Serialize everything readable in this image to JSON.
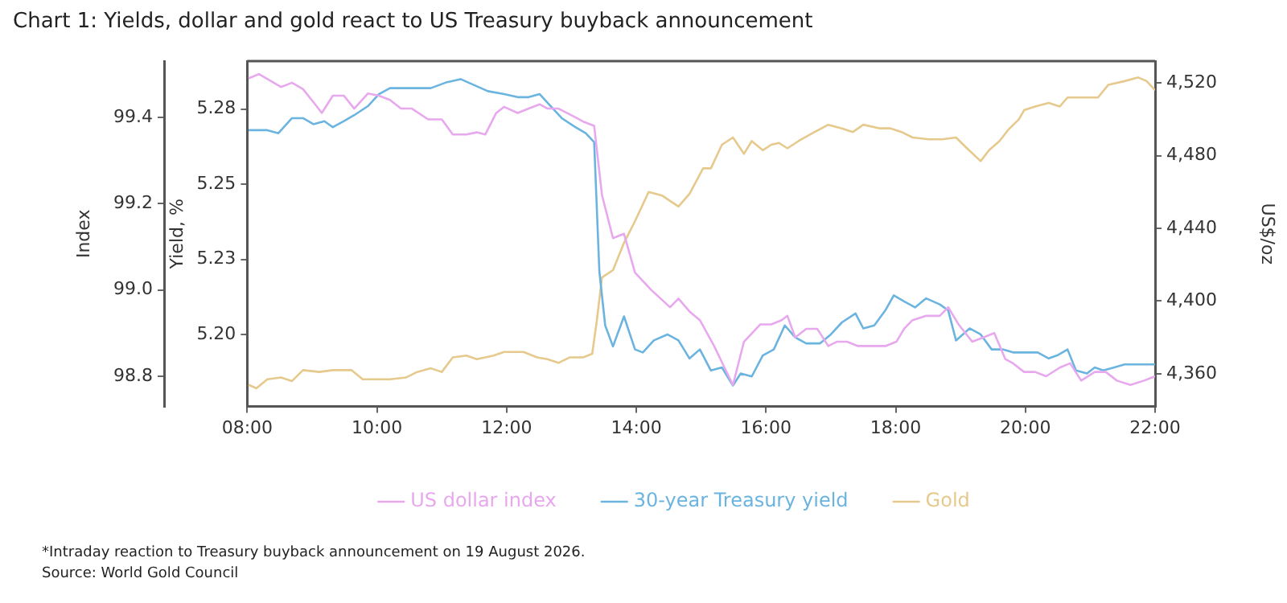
{
  "chart_data": {
    "type": "line",
    "title": "Chart 1: Yields, dollar and gold react to US Treasury buyback announcement",
    "ylabel": "Index",
    "y2label": "Yield, %",
    "y3label": "US$/oz",
    "xlim": [
      8,
      22
    ],
    "xticks": [
      {
        "value": 8,
        "label": "08:00"
      },
      {
        "value": 10,
        "label": "10:00"
      },
      {
        "value": 12,
        "label": "12:00"
      },
      {
        "value": 14,
        "label": "14:00"
      },
      {
        "value": 16,
        "label": "16:00"
      },
      {
        "value": 18,
        "label": "18:00"
      },
      {
        "value": 20,
        "label": "20:00"
      },
      {
        "value": 22,
        "label": "22:00"
      }
    ],
    "ylim": [
      98.73,
      99.53
    ],
    "yticks": [
      98.8,
      {
        "value": 99.0,
        "label": "99.0"
      },
      99.2,
      99.4
    ],
    "y2lim": [
      5.176,
      5.291
    ],
    "y2ticks": [
      {
        "value": 5.2,
        "label": "5.20"
      },
      {
        "value": 5.225,
        "label": "5.23"
      },
      {
        "value": 5.25,
        "label": "5.25"
      },
      {
        "value": 5.275,
        "label": "5.28"
      }
    ],
    "y3lim": [
      4342,
      4532
    ],
    "y3ticks": [
      {
        "value": 4360,
        "label": "4,360"
      },
      {
        "value": 4400,
        "label": "4,400"
      },
      {
        "value": 4440,
        "label": "4,440"
      },
      {
        "value": 4480,
        "label": "4,480"
      },
      {
        "value": 4520,
        "label": "4,520"
      }
    ],
    "grid": false,
    "legend": "bottom",
    "marker": "none",
    "line_style": "solid",
    "series": [
      {
        "name": "US dollar index",
        "color": "#e8a8ee",
        "x": [
          8.02,
          8.18,
          8.35,
          8.52,
          8.69,
          8.86,
          9.02,
          9.15,
          9.32,
          9.49,
          9.65,
          9.86,
          10.03,
          10.2,
          10.37,
          10.54,
          10.79,
          11.0,
          11.17,
          11.38,
          11.54,
          11.67,
          11.84,
          11.96,
          12.17,
          12.34,
          12.51,
          12.63,
          12.8,
          13.06,
          13.18,
          13.35,
          13.47,
          13.64,
          13.81,
          13.98,
          14.23,
          14.52,
          14.65,
          14.82,
          14.98,
          15.2,
          15.36,
          15.49,
          15.66,
          15.91,
          16.08,
          16.24,
          16.33,
          16.45,
          16.62,
          16.79,
          16.96,
          17.09,
          17.25,
          17.42,
          17.63,
          17.84,
          18.01,
          18.13,
          18.26,
          18.47,
          18.68,
          18.81,
          18.97,
          19.18,
          19.35,
          19.52,
          19.69,
          19.81,
          19.98,
          20.15,
          20.32,
          20.53,
          20.69,
          20.86,
          21.07,
          21.24,
          21.41,
          21.62,
          21.83,
          22.0
        ],
        "values": [
          99.49,
          99.5,
          99.485,
          99.47,
          99.48,
          99.465,
          99.435,
          99.41,
          99.45,
          99.45,
          99.42,
          99.455,
          99.45,
          99.44,
          99.42,
          99.42,
          99.395,
          99.395,
          99.36,
          99.36,
          99.365,
          99.36,
          99.41,
          99.424,
          99.41,
          99.42,
          99.43,
          99.42,
          99.42,
          99.4,
          99.39,
          99.38,
          99.22,
          99.12,
          99.13,
          99.04,
          99.0,
          98.96,
          98.98,
          98.95,
          98.93,
          98.87,
          98.82,
          98.78,
          98.88,
          98.92,
          98.92,
          98.93,
          98.94,
          98.89,
          98.91,
          98.91,
          98.87,
          98.88,
          98.88,
          98.87,
          98.87,
          98.87,
          98.88,
          98.91,
          98.93,
          98.94,
          98.94,
          98.96,
          98.92,
          98.88,
          98.89,
          98.9,
          98.84,
          98.83,
          98.81,
          98.81,
          98.8,
          98.82,
          98.83,
          98.79,
          98.81,
          98.81,
          98.79,
          98.78,
          98.79,
          98.8
        ]
      },
      {
        "name": "30-year Treasury yield",
        "color": "#6cb4e0",
        "axis": "y2",
        "x": [
          8.02,
          8.31,
          8.48,
          8.69,
          8.86,
          9.02,
          9.19,
          9.32,
          9.49,
          9.65,
          9.86,
          10.03,
          10.2,
          10.37,
          10.62,
          10.83,
          11.08,
          11.29,
          11.5,
          11.71,
          11.96,
          12.17,
          12.34,
          12.51,
          12.68,
          12.85,
          13.06,
          13.22,
          13.35,
          13.43,
          13.52,
          13.64,
          13.81,
          13.98,
          14.1,
          14.27,
          14.48,
          14.65,
          14.82,
          14.98,
          15.15,
          15.32,
          15.49,
          15.61,
          15.78,
          15.95,
          16.12,
          16.29,
          16.45,
          16.62,
          16.83,
          17.0,
          17.17,
          17.38,
          17.5,
          17.67,
          17.84,
          17.97,
          18.13,
          18.3,
          18.47,
          18.68,
          18.81,
          18.93,
          19.14,
          19.31,
          19.48,
          19.65,
          19.81,
          20.02,
          20.19,
          20.36,
          20.49,
          20.65,
          20.78,
          20.95,
          21.07,
          21.2,
          21.37,
          21.53,
          21.7,
          22.0
        ],
        "values": [
          5.268,
          5.268,
          5.267,
          5.272,
          5.272,
          5.27,
          5.271,
          5.269,
          5.271,
          5.273,
          5.276,
          5.28,
          5.282,
          5.282,
          5.282,
          5.282,
          5.284,
          5.285,
          5.283,
          5.281,
          5.28,
          5.279,
          5.279,
          5.28,
          5.276,
          5.272,
          5.269,
          5.267,
          5.264,
          5.221,
          5.203,
          5.196,
          5.206,
          5.195,
          5.194,
          5.198,
          5.2,
          5.198,
          5.192,
          5.195,
          5.188,
          5.189,
          5.183,
          5.187,
          5.186,
          5.193,
          5.195,
          5.203,
          5.199,
          5.197,
          5.197,
          5.2,
          5.204,
          5.207,
          5.202,
          5.203,
          5.208,
          5.213,
          5.211,
          5.209,
          5.212,
          5.21,
          5.208,
          5.198,
          5.202,
          5.2,
          5.195,
          5.195,
          5.194,
          5.194,
          5.194,
          5.192,
          5.193,
          5.195,
          5.188,
          5.187,
          5.189,
          5.188,
          5.189,
          5.19,
          5.19,
          5.19
        ]
      },
      {
        "name": "Gold",
        "color": "#e6c98c",
        "axis": "y3",
        "x": [
          8.02,
          8.14,
          8.31,
          8.52,
          8.69,
          8.86,
          9.11,
          9.32,
          9.61,
          9.78,
          10.03,
          10.2,
          10.45,
          10.62,
          10.83,
          11.0,
          11.17,
          11.38,
          11.54,
          11.67,
          11.8,
          11.96,
          12.26,
          12.47,
          12.63,
          12.8,
          12.97,
          13.18,
          13.32,
          13.39,
          13.47,
          13.64,
          13.81,
          13.98,
          14.19,
          14.4,
          14.65,
          14.82,
          15.03,
          15.15,
          15.32,
          15.49,
          15.66,
          15.78,
          15.95,
          16.08,
          16.2,
          16.33,
          16.5,
          16.75,
          16.96,
          17.17,
          17.34,
          17.5,
          17.76,
          17.92,
          18.09,
          18.26,
          18.51,
          18.72,
          18.93,
          19.1,
          19.31,
          19.44,
          19.6,
          19.73,
          19.9,
          19.98,
          20.15,
          20.36,
          20.53,
          20.65,
          20.86,
          21.12,
          21.28,
          21.53,
          21.74,
          21.87,
          22.0
        ],
        "values": [
          4354,
          4352,
          4357,
          4358,
          4356,
          4362,
          4361,
          4362,
          4362,
          4357,
          4357,
          4357,
          4358,
          4361,
          4363,
          4361,
          4369,
          4370,
          4368,
          4369,
          4370,
          4372,
          4372,
          4369,
          4368,
          4366,
          4369,
          4369,
          4371,
          4389,
          4413,
          4417,
          4432,
          4444,
          4460,
          4458,
          4452,
          4459,
          4473,
          4473,
          4486,
          4490,
          4481,
          4488,
          4483,
          4486,
          4487,
          4484,
          4488,
          4493,
          4497,
          4495,
          4493,
          4497,
          4495,
          4495,
          4493,
          4490,
          4489,
          4489,
          4490,
          4484,
          4477,
          4483,
          4488,
          4494,
          4500,
          4505,
          4507,
          4509,
          4507,
          4512,
          4512,
          4512,
          4519,
          4521,
          4523,
          4521,
          4516
        ]
      }
    ],
    "annotations": [
      "*Intraday reaction to Treasury buyback announcement on 19 August 2026.",
      "Source: World Gold Council"
    ]
  }
}
